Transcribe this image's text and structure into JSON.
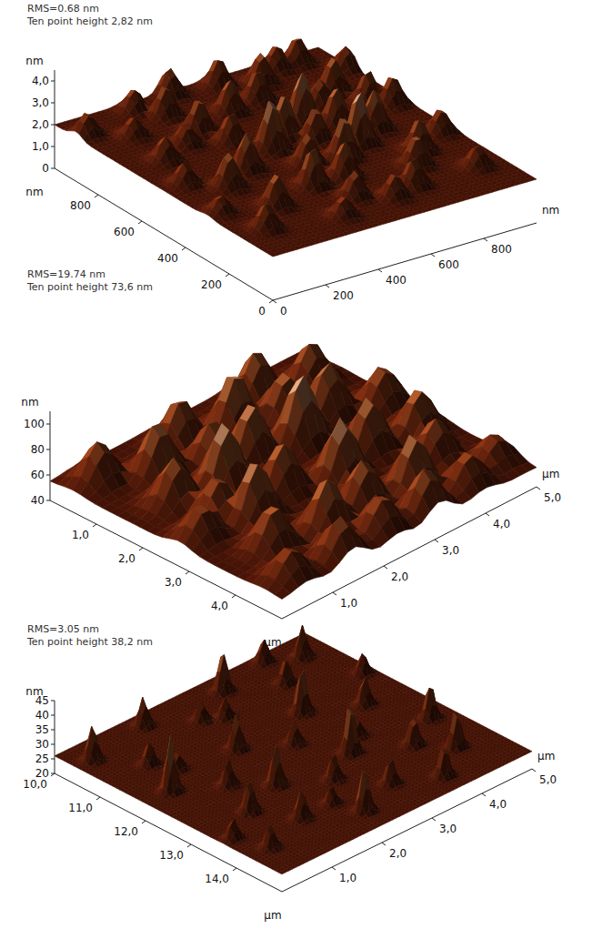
{
  "chart_data": [
    {
      "type": "surface",
      "title": "RMS=0.68 nm",
      "subtitle": "Ten point height 2,82 nm",
      "x_label": "nm",
      "y_label": "nm",
      "z_label": "nm",
      "xlim": [
        0,
        1000
      ],
      "xticks": [
        0,
        200,
        400,
        600,
        800
      ],
      "ylim": [
        0,
        1000
      ],
      "yticks": [
        0,
        200,
        400,
        600,
        800
      ],
      "zlim": [
        0,
        4.5
      ],
      "zticks": [
        0,
        {
          "value": 1,
          "label": "1,0"
        },
        {
          "value": 2,
          "label": "2,0"
        },
        {
          "value": 3,
          "label": "3,0"
        },
        {
          "value": 4,
          "label": "4,0"
        }
      ],
      "base": 2.0,
      "peak_width": 25,
      "peaks": [
        [
          100,
          150,
          3.2
        ],
        [
          180,
          420,
          3.6
        ],
        [
          250,
          700,
          3.0
        ],
        [
          320,
          880,
          3.4
        ],
        [
          150,
          820,
          2.9
        ],
        [
          400,
          300,
          3.8
        ],
        [
          450,
          550,
          4.3
        ],
        [
          500,
          800,
          3.5
        ],
        [
          560,
          120,
          3.1
        ],
        [
          600,
          400,
          3.9
        ],
        [
          650,
          650,
          4.2
        ],
        [
          700,
          900,
          3.4
        ],
        [
          750,
          250,
          3.4
        ],
        [
          800,
          500,
          3.8
        ],
        [
          850,
          750,
          3.6
        ],
        [
          900,
          150,
          3.0
        ],
        [
          950,
          600,
          3.3
        ],
        [
          880,
          950,
          3.2
        ],
        [
          350,
          100,
          2.9
        ],
        [
          420,
          980,
          3.2
        ],
        [
          80,
          500,
          3.0
        ],
        [
          220,
          250,
          3.5
        ],
        [
          300,
          480,
          3.7
        ],
        [
          380,
          650,
          3.3
        ],
        [
          520,
          300,
          3.6
        ],
        [
          540,
          600,
          3.9
        ],
        [
          620,
          820,
          3.4
        ],
        [
          700,
          450,
          4.4
        ],
        [
          760,
          700,
          3.2
        ],
        [
          820,
          320,
          3.5
        ],
        [
          950,
          380,
          3.1
        ],
        [
          980,
          850,
          3.0
        ],
        [
          130,
          650,
          3.1
        ],
        [
          260,
          950,
          3.0
        ],
        [
          480,
          420,
          3.4
        ],
        [
          660,
          150,
          3.3
        ],
        [
          720,
          580,
          3.7
        ],
        [
          580,
          950,
          3.3
        ],
        [
          50,
          300,
          2.8
        ],
        [
          40,
          900,
          3.0
        ],
        [
          900,
          650,
          3.4
        ],
        [
          340,
          750,
          3.5
        ],
        [
          460,
          180,
          3.2
        ],
        [
          800,
          950,
          3.1
        ],
        [
          600,
          530,
          3.5
        ]
      ]
    },
    {
      "type": "surface",
      "title": "RMS=19.74 nm",
      "subtitle": "Ten point height 73,6 nm",
      "x_label": "µm",
      "y_label": "µm",
      "z_label": "nm",
      "xlim": [
        0,
        5
      ],
      "xticks": [
        {
          "value": 1,
          "label": "1,0"
        },
        {
          "value": 2,
          "label": "2,0"
        },
        {
          "value": 3,
          "label": "3,0"
        },
        {
          "value": 4,
          "label": "4,0"
        },
        {
          "value": 5,
          "label": "5,0"
        }
      ],
      "ylim": [
        0,
        5
      ],
      "yticks": [
        {
          "value": 1,
          "label": "1,0"
        },
        {
          "value": 2,
          "label": "2,0"
        },
        {
          "value": 3,
          "label": "3,0"
        },
        {
          "value": 4,
          "label": "4,0"
        }
      ],
      "zlim": [
        40,
        110
      ],
      "zticks": [
        40,
        60,
        80,
        100
      ],
      "base": 55,
      "peak_width": 0.22,
      "peaks": [
        [
          0.5,
          0.5,
          85
        ],
        [
          1.2,
          1.0,
          95
        ],
        [
          2.0,
          0.6,
          90
        ],
        [
          2.8,
          0.9,
          100
        ],
        [
          3.6,
          0.5,
          92
        ],
        [
          4.4,
          0.8,
          88
        ],
        [
          0.8,
          1.8,
          90
        ],
        [
          1.6,
          2.0,
          105
        ],
        [
          2.4,
          1.7,
          98
        ],
        [
          3.2,
          1.9,
          108
        ],
        [
          4.0,
          1.6,
          95
        ],
        [
          4.7,
          2.0,
          85
        ],
        [
          0.4,
          2.8,
          80
        ],
        [
          1.3,
          3.0,
          100
        ],
        [
          2.1,
          2.7,
          92
        ],
        [
          2.9,
          3.1,
          102
        ],
        [
          3.7,
          2.8,
          96
        ],
        [
          4.5,
          3.0,
          90
        ],
        [
          0.9,
          3.8,
          88
        ],
        [
          1.8,
          4.0,
          95
        ],
        [
          2.6,
          3.9,
          90
        ],
        [
          3.4,
          4.1,
          98
        ],
        [
          4.2,
          3.7,
          86
        ],
        [
          0.5,
          4.6,
          78
        ],
        [
          1.4,
          4.7,
          85
        ],
        [
          2.3,
          4.6,
          82
        ],
        [
          3.1,
          4.7,
          88
        ],
        [
          4.0,
          4.6,
          80
        ],
        [
          4.7,
          4.4,
          76
        ],
        [
          2.0,
          1.3,
          85
        ],
        [
          3.5,
          1.2,
          90
        ],
        [
          1.0,
          2.5,
          84
        ]
      ]
    },
    {
      "type": "surface",
      "title": "RMS=3.05 nm",
      "subtitle": "Ten point height 38,2 nm",
      "x_label": "µm",
      "y_label": "µm",
      "z_label": "nm",
      "xlim": [
        0,
        5
      ],
      "xticks": [
        {
          "value": 1,
          "label": "1,0"
        },
        {
          "value": 2,
          "label": "2,0"
        },
        {
          "value": 3,
          "label": "3,0"
        },
        {
          "value": 4,
          "label": "4,0"
        },
        {
          "value": 5,
          "label": "5,0"
        }
      ],
      "ylim": [
        10,
        15
      ],
      "yticks": [
        {
          "value": 10,
          "label": "10,0"
        },
        {
          "value": 11,
          "label": "11,0"
        },
        {
          "value": 12,
          "label": "12,0"
        },
        {
          "value": 13,
          "label": "13,0"
        },
        {
          "value": 14,
          "label": "14,0"
        }
      ],
      "zlim": [
        20,
        45
      ],
      "zticks": [
        20,
        25,
        30,
        35,
        40,
        45
      ],
      "base": 26,
      "peak_width": 0.07,
      "peaks": [
        [
          0.3,
          10.5,
          38
        ],
        [
          0.8,
          11.2,
          34
        ],
        [
          1.5,
          10.3,
          36
        ],
        [
          2.2,
          10.8,
          33
        ],
        [
          3.0,
          10.4,
          40
        ],
        [
          3.8,
          10.9,
          35
        ],
        [
          4.5,
          10.5,
          37
        ],
        [
          0.5,
          12.0,
          45
        ],
        [
          1.2,
          12.5,
          35
        ],
        [
          2.0,
          11.8,
          38
        ],
        [
          2.7,
          12.3,
          34
        ],
        [
          3.4,
          11.7,
          42
        ],
        [
          4.2,
          12.2,
          36
        ],
        [
          4.8,
          11.5,
          33
        ],
        [
          0.9,
          13.3,
          37
        ],
        [
          1.7,
          13.0,
          40
        ],
        [
          2.4,
          13.5,
          35
        ],
        [
          3.1,
          13.1,
          44
        ],
        [
          3.9,
          13.6,
          36
        ],
        [
          4.6,
          13.2,
          38
        ],
        [
          0.4,
          14.3,
          34
        ],
        [
          1.3,
          14.0,
          36
        ],
        [
          2.1,
          14.5,
          41
        ],
        [
          2.9,
          14.2,
          35
        ],
        [
          3.6,
          14.6,
          37
        ],
        [
          4.3,
          14.1,
          39
        ],
        [
          1.0,
          11.6,
          32
        ],
        [
          2.5,
          11.0,
          33
        ],
        [
          3.5,
          12.8,
          33
        ],
        [
          1.9,
          14.0,
          32
        ],
        [
          4.0,
          10.2,
          34
        ],
        [
          0.2,
          13.7,
          33
        ]
      ]
    }
  ]
}
